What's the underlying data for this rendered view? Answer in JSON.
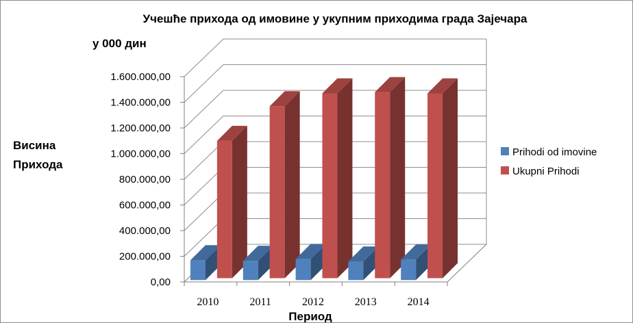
{
  "chart_data": {
    "type": "bar",
    "title": "Учешће прихода од имовине у укупним приходима града Зајечара",
    "unit_label": "у 000 дин",
    "ylabel_lines": [
      "Висина",
      "Прихода"
    ],
    "xlabel": "Период",
    "categories": [
      "2010",
      "2011",
      "2012",
      "2013",
      "2014"
    ],
    "y_ticks": [
      "0,00",
      "200.000,00",
      "400.000,00",
      "600.000,00",
      "800.000,00",
      "1.000.000,00",
      "1.200.000,00",
      "1.400.000,00",
      "1.600.000,00"
    ],
    "ylim": [
      0,
      1600000
    ],
    "grid": true,
    "legend_position": "right",
    "series": [
      {
        "name": "Prihodi od imovine",
        "color": "#4f81bd",
        "values": [
          155000,
          150000,
          165000,
          145000,
          160000
        ]
      },
      {
        "name": "Ukupni Prihodi",
        "color": "#c0504d",
        "values": [
          1070000,
          1340000,
          1440000,
          1450000,
          1440000
        ]
      }
    ]
  }
}
